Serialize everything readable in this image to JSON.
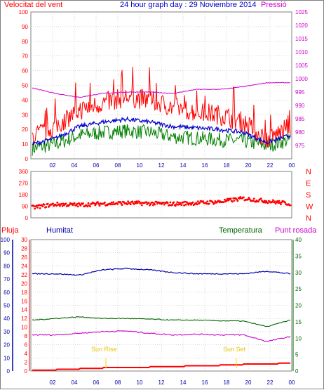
{
  "header": {
    "left_label": "Velocitat del vent",
    "center_title": "24 hour graph day : 29 Noviembre 2014",
    "right_label": "Pressió"
  },
  "colors": {
    "wind": "#ff0000",
    "gust": "#ff0000",
    "avg": "#0000cc",
    "low": "#008000",
    "pressure": "#cc00cc",
    "direction": "#ff0000",
    "humidity": "#0000aa",
    "temperature": "#006600",
    "dewpoint": "#cc00cc",
    "rain": "#ff0000",
    "sun": "#ffd700",
    "grid": "#c0c0c0",
    "frame": "#808080",
    "hours": "#0000aa"
  },
  "chart_data": [
    {
      "type": "line",
      "title": "24 hour graph day : 29 Noviembre 2014",
      "x": [
        "02",
        "04",
        "06",
        "08",
        "10",
        "12",
        "14",
        "16",
        "18",
        "20",
        "22",
        "00"
      ],
      "ylabel_left": "Velocitat del vent",
      "ylabel_right": "Pressió",
      "ylim_left": [
        0,
        100
      ],
      "ylim_right": [
        970,
        1025
      ],
      "yticks_left": [
        "0",
        "10",
        "20",
        "30",
        "40",
        "50",
        "60",
        "70",
        "80",
        "90",
        "100"
      ],
      "yticks_right": [
        "975",
        "980",
        "985",
        "990",
        "995",
        "1000",
        "1005",
        "1010",
        "1015",
        "1020",
        "1025"
      ],
      "series": [
        {
          "name": "Velocitat del vent",
          "axis": "left",
          "values": [
            15,
            22,
            33,
            38,
            42,
            40,
            35,
            32,
            30,
            25,
            13,
            22
          ]
        },
        {
          "name": "",
          "axis": "left",
          "values": [
            10,
            14,
            22,
            25,
            27,
            25,
            22,
            21,
            20,
            18,
            11,
            16
          ]
        },
        {
          "name": "",
          "axis": "left",
          "values": [
            7,
            10,
            16,
            18,
            19,
            18,
            15,
            14,
            13,
            12,
            9,
            13
          ]
        },
        {
          "name": "Pressió",
          "axis": "right",
          "values": [
            996.5,
            994.5,
            993.0,
            994.5,
            995.0,
            995.0,
            994.5,
            996.0,
            996.0,
            997.0,
            998.5,
            998.5
          ]
        }
      ]
    },
    {
      "type": "scatter",
      "x": [
        "02",
        "04",
        "06",
        "08",
        "10",
        "12",
        "14",
        "16",
        "18",
        "20",
        "22",
        "00"
      ],
      "ylim": [
        0,
        360
      ],
      "yticks": [
        "0",
        "90",
        "180",
        "270",
        "360"
      ],
      "right_labels": [
        "N",
        "W",
        "S",
        "E",
        "N"
      ],
      "series": [
        {
          "name": "",
          "values": [
            80,
            105,
            100,
            110,
            115,
            112,
            108,
            115,
            125,
            150,
            130,
            110
          ]
        }
      ]
    },
    {
      "type": "line",
      "x": [
        "02",
        "04",
        "06",
        "08",
        "10",
        "12",
        "14",
        "16",
        "18",
        "20",
        "22",
        "00"
      ],
      "labels": {
        "rain": "Pluja",
        "humidity": "Humitat",
        "temperature": "Temperatura",
        "dewpoint": "Punt rosada"
      },
      "ylim_humidity": [
        0,
        100
      ],
      "ylim_rain": [
        0,
        30
      ],
      "ylim_temperature": [
        0,
        40
      ],
      "yticks_humidity": [
        "0",
        "10",
        "20",
        "30",
        "40",
        "50",
        "60",
        "70",
        "80",
        "90",
        "100"
      ],
      "yticks_rain": [
        "0",
        "2",
        "4",
        "6",
        "8",
        "10",
        "12",
        "14",
        "16",
        "18",
        "20",
        "22",
        "24",
        "26",
        "28",
        "30"
      ],
      "yticks_temperature": [
        "0",
        "5",
        "10",
        "15",
        "20",
        "25",
        "30",
        "35",
        "40"
      ],
      "annotations": [
        "Sun Rise",
        "Sun Set"
      ],
      "series": [
        {
          "name": "Humitat",
          "axis": "humidity",
          "values": [
            74,
            74,
            73,
            77,
            78,
            77,
            75,
            74,
            74,
            74,
            76,
            74
          ]
        },
        {
          "name": "Temperatura",
          "axis": "temperature",
          "values": [
            15.5,
            16.0,
            16.5,
            16.0,
            16.0,
            15.8,
            15.5,
            15.5,
            15.3,
            15.2,
            13.5,
            15.5
          ]
        },
        {
          "name": "Punt rosada",
          "axis": "temperature",
          "values": [
            11.0,
            11.0,
            11.5,
            12.0,
            12.2,
            11.5,
            11.0,
            11.2,
            11.0,
            11.0,
            9.0,
            10.5
          ]
        },
        {
          "name": "Pluja",
          "axis": "rain",
          "values": [
            0.2,
            0.3,
            0.5,
            0.7,
            0.8,
            0.9,
            1.0,
            1.2,
            1.3,
            1.5,
            1.6,
            1.8
          ]
        }
      ]
    }
  ]
}
